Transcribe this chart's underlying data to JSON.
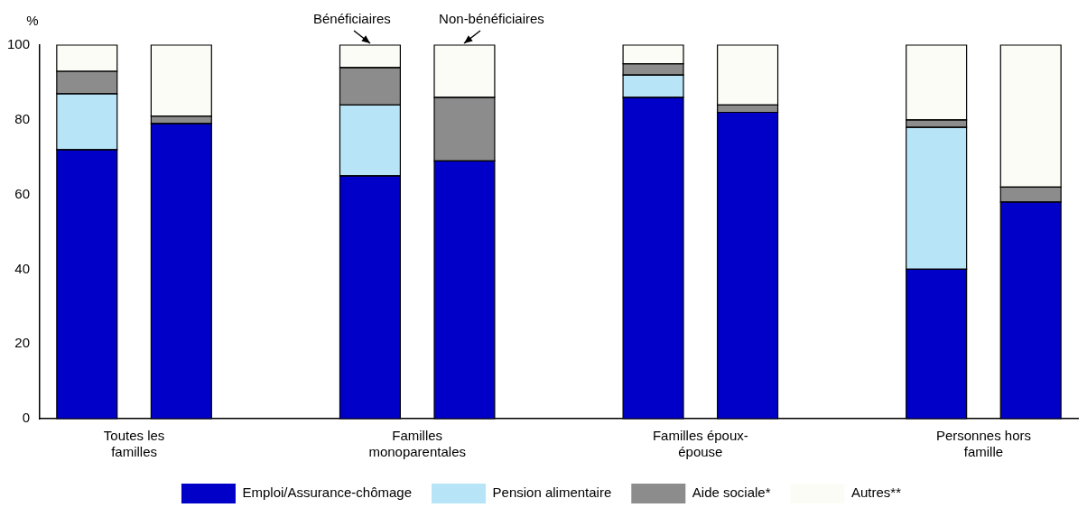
{
  "chart_data": {
    "type": "bar",
    "stacked": true,
    "ylabel": "%",
    "categories": [
      "Toutes les familles",
      null,
      null,
      "Familles monoparentales",
      null,
      null,
      "Familles époux-épouse",
      null,
      null,
      "Personnes hors famille",
      null
    ],
    "series": [
      {
        "name": "Emploi/Assurance-chômage",
        "color": "#0000c8",
        "values": [
          72,
          79,
          null,
          65,
          69,
          null,
          86,
          82,
          null,
          40,
          58
        ]
      },
      {
        "name": "Pension alimentaire",
        "color": "#b8e4f8",
        "values": [
          15,
          0,
          null,
          19,
          0,
          null,
          6,
          0,
          null,
          38,
          0
        ]
      },
      {
        "name": "Aide sociale*",
        "color": "#8c8c8c",
        "values": [
          6,
          2,
          null,
          10,
          17,
          null,
          3,
          2,
          null,
          2,
          4
        ]
      },
      {
        "name": "Autres**",
        "color": "#fcfcf6",
        "values": [
          7,
          19,
          null,
          6,
          14,
          null,
          5,
          16,
          null,
          20,
          38
        ]
      }
    ],
    "ylim": [
      0,
      100
    ],
    "yticks": [
      0,
      20,
      40,
      60,
      80,
      100
    ],
    "grid": false,
    "legend": "bottom",
    "annotations": [
      "Bénéficiaires",
      "Non-bénéficiaires"
    ]
  }
}
